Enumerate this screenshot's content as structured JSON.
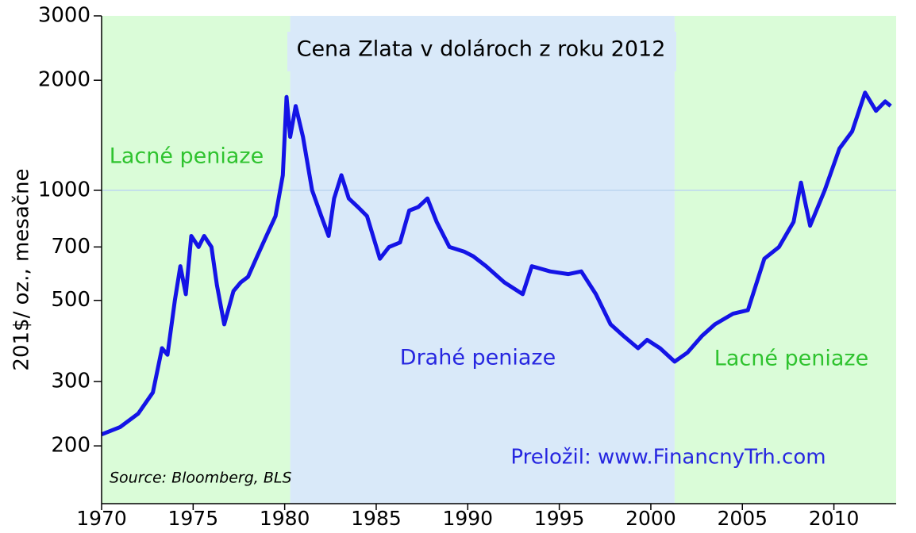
{
  "chart_data": {
    "type": "line",
    "title": "Cena Zlata v dolároch z roku 2012",
    "y_label": "201$/ oz., mesačne",
    "source": "Source:  Bloomberg, BLS",
    "credit": "Preložil: www.FinancnyTrh.com",
    "regions": [
      {
        "label": "Lacné peniaze",
        "from": 1970,
        "to": 1980.3,
        "color": "#dafcd8"
      },
      {
        "label": "Drahé peniaze",
        "from": 1980.3,
        "to": 2001.3,
        "color": "#d9e9f9"
      },
      {
        "label": "Lacné peniaze",
        "from": 2001.3,
        "to": 2013.4,
        "color": "#dafcd8"
      }
    ],
    "color": "#1414e6",
    "log_y": true,
    "hlines": [
      1000
    ],
    "xlim": [
      1970,
      2013.4
    ],
    "xticks": [
      1970,
      1975,
      1980,
      1985,
      1990,
      1995,
      2000,
      2005,
      2010
    ],
    "ylim": [
      139,
      3000
    ],
    "yticks": [
      200,
      300,
      500,
      700,
      1000,
      2000,
      3000
    ],
    "x": [
      1970.0,
      1971.0,
      1972.0,
      1972.8,
      1973.3,
      1973.6,
      1974.0,
      1974.3,
      1974.6,
      1974.9,
      1975.3,
      1975.6,
      1976.0,
      1976.3,
      1976.7,
      1977.2,
      1977.6,
      1978.0,
      1978.5,
      1979.0,
      1979.5,
      1979.9,
      1980.1,
      1980.3,
      1980.6,
      1981.0,
      1981.5,
      1982.0,
      1982.4,
      1982.7,
      1983.1,
      1983.5,
      1984.0,
      1984.5,
      1985.2,
      1985.7,
      1986.3,
      1986.8,
      1987.3,
      1987.8,
      1988.3,
      1989.0,
      1989.8,
      1990.3,
      1991.0,
      1992.0,
      1993.0,
      1993.5,
      1994.5,
      1995.5,
      1996.2,
      1997.0,
      1997.8,
      1998.5,
      1999.3,
      1999.8,
      2000.5,
      2001.3,
      2002.0,
      2002.8,
      2003.5,
      2004.5,
      2005.3,
      2006.2,
      2007.0,
      2007.8,
      2008.2,
      2008.7,
      2009.5,
      2010.3,
      2011.0,
      2011.7,
      2012.3,
      2012.8,
      2013.1
    ],
    "values": [
      215,
      225,
      245,
      280,
      370,
      355,
      500,
      620,
      520,
      750,
      700,
      750,
      700,
      550,
      430,
      530,
      560,
      580,
      660,
      750,
      850,
      1100,
      1800,
      1400,
      1700,
      1400,
      1000,
      850,
      750,
      950,
      1100,
      950,
      900,
      850,
      650,
      700,
      720,
      880,
      900,
      950,
      820,
      700,
      680,
      660,
      620,
      560,
      520,
      620,
      600,
      590,
      600,
      520,
      430,
      400,
      370,
      390,
      370,
      340,
      360,
      400,
      430,
      460,
      470,
      650,
      700,
      820,
      1050,
      800,
      1000,
      1300,
      1450,
      1850,
      1650,
      1750,
      1700
    ]
  }
}
